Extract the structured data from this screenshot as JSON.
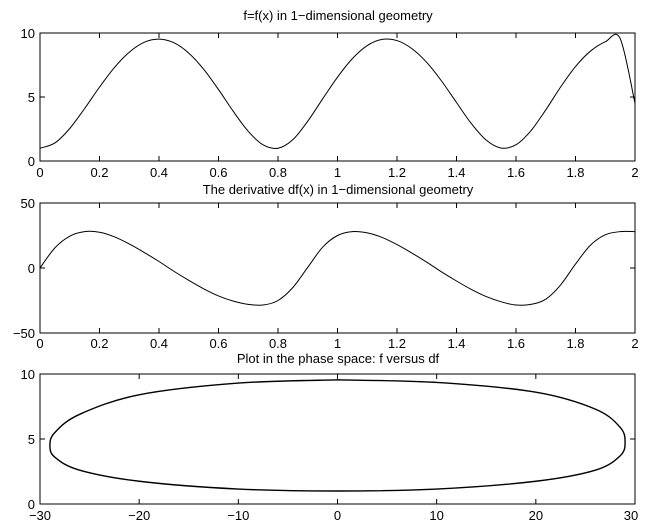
{
  "chart_data": [
    {
      "type": "line",
      "title": "f=f(x) in 1−dimensional geometry",
      "xlabel": "",
      "ylabel": "",
      "xlim": [
        0,
        2
      ],
      "ylim": [
        0,
        10
      ],
      "xticks": [
        0,
        0.2,
        0.4,
        0.6,
        0.8,
        1,
        1.2,
        1.4,
        1.6,
        1.8,
        2
      ],
      "xtick_labels": [
        "0",
        "0.2",
        "0.4",
        "0.6",
        "0.8",
        "1",
        "1.2",
        "1.4",
        "1.6",
        "1.8",
        "2"
      ],
      "yticks": [
        0,
        5,
        10
      ],
      "ytick_labels": [
        "0",
        "5",
        "10"
      ],
      "grid": false,
      "line_color": "#000000",
      "series": [
        {
          "x": [
            0,
            0.05,
            0.1,
            0.15,
            0.2,
            0.25,
            0.3,
            0.35,
            0.4,
            0.45,
            0.5,
            0.55,
            0.6,
            0.65,
            0.7,
            0.75,
            0.8,
            0.85,
            0.9,
            0.95,
            1.0,
            1.05,
            1.1,
            1.15,
            1.2,
            1.25,
            1.3,
            1.35,
            1.4,
            1.45,
            1.5,
            1.55,
            1.6,
            1.65,
            1.7,
            1.75,
            1.8,
            1.85,
            1.9,
            1.95,
            2.0
          ],
          "y": [
            1.0,
            1.41,
            2.54,
            4.1,
            5.77,
            7.3,
            8.5,
            9.27,
            9.52,
            9.24,
            8.43,
            7.17,
            5.58,
            3.87,
            2.32,
            1.26,
            1.0,
            1.67,
            3.11,
            4.85,
            6.55,
            8.0,
            9.02,
            9.5,
            9.41,
            8.78,
            7.7,
            6.24,
            4.57,
            2.92,
            1.63,
            1.01,
            1.27,
            2.36,
            3.99,
            5.78,
            7.38,
            8.58,
            9.31,
            9.57,
            4.5
          ]
        }
      ]
    },
    {
      "type": "line",
      "title": "The derivative df(x) in 1−dimensional geometry",
      "xlabel": "",
      "ylabel": "",
      "xlim": [
        0,
        2
      ],
      "ylim": [
        -50,
        50
      ],
      "xticks": [
        0,
        0.2,
        0.4,
        0.6,
        0.8,
        1,
        1.2,
        1.4,
        1.6,
        1.8,
        2
      ],
      "xtick_labels": [
        "0",
        "0.2",
        "0.4",
        "0.6",
        "0.8",
        "1",
        "1.2",
        "1.4",
        "1.6",
        "1.8",
        "2"
      ],
      "yticks": [
        -50,
        0,
        50
      ],
      "ytick_labels": [
        "−50",
        "0",
        "50"
      ],
      "grid": false,
      "line_color": "#000000",
      "series": [
        {
          "x": [
            0,
            0.05,
            0.1,
            0.15,
            0.2,
            0.25,
            0.3,
            0.35,
            0.4,
            0.45,
            0.5,
            0.55,
            0.6,
            0.65,
            0.7,
            0.75,
            0.8,
            0.85,
            0.9,
            0.95,
            1.0,
            1.05,
            1.1,
            1.15,
            1.2,
            1.25,
            1.3,
            1.35,
            1.4,
            1.45,
            1.5,
            1.55,
            1.6,
            1.65,
            1.7,
            1.75,
            1.8,
            1.85,
            1.9,
            1.95,
            2.0
          ],
          "y": [
            0.0,
            15.5,
            24.5,
            28.0,
            27.5,
            24.0,
            18.5,
            12.0,
            5.0,
            -2.5,
            -9.5,
            -16.0,
            -21.5,
            -25.5,
            -28.0,
            -28.5,
            -25.0,
            -15.0,
            0.5,
            16.0,
            25.0,
            28.0,
            27.0,
            23.5,
            18.0,
            11.5,
            4.5,
            -3.0,
            -10.0,
            -16.5,
            -22.0,
            -26.0,
            -28.5,
            -28.0,
            -24.0,
            -13.0,
            3.0,
            17.5,
            25.5,
            28.0,
            28.0
          ]
        }
      ]
    },
    {
      "type": "line",
      "title": "Plot in the phase space: f versus df",
      "xlabel": "",
      "ylabel": "",
      "xlim": [
        -30,
        30
      ],
      "ylim": [
        0,
        10
      ],
      "xticks": [
        -30,
        -20,
        -10,
        0,
        10,
        20,
        30
      ],
      "xtick_labels": [
        "−30",
        "−20",
        "−10",
        "0",
        "10",
        "20",
        "30"
      ],
      "yticks": [
        0,
        5,
        10
      ],
      "ytick_labels": [
        "0",
        "5",
        "10"
      ],
      "grid": false,
      "line_color": "#000000",
      "series": [
        {
          "x": [
            0.0,
            10.0,
            20.0,
            26.0,
            28.5,
            29.0,
            28.5,
            26.0,
            20.0,
            10.0,
            0.0,
            -10.0,
            -20.0,
            -26.0,
            -28.5,
            -29.0,
            -28.5,
            -26.0,
            -20.0,
            -10.0,
            0.0
          ],
          "y": [
            9.55,
            9.35,
            8.6,
            7.3,
            5.9,
            4.75,
            3.7,
            2.6,
            1.75,
            1.15,
            1.0,
            1.15,
            1.75,
            2.6,
            3.6,
            4.5,
            5.5,
            6.9,
            8.4,
            9.3,
            9.55
          ]
        }
      ]
    }
  ]
}
